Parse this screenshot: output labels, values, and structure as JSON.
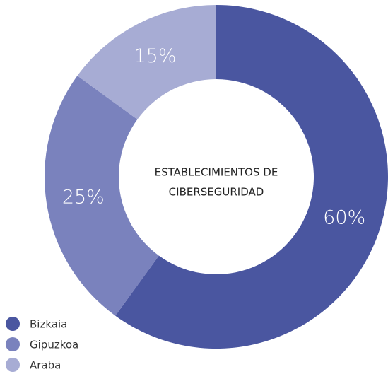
{
  "chart_data": {
    "type": "donut",
    "title_lines": [
      "ESTABLECIMIENTOS DE",
      "CIBERSEGURIDAD"
    ],
    "categories": [
      "Bizkaia",
      "Gipuzkoa",
      "Araba"
    ],
    "values": [
      60,
      25,
      15
    ],
    "value_labels": [
      "60%",
      "25%",
      "15%"
    ],
    "colors": [
      "#4a56a0",
      "#7a82bd",
      "#a7acd4"
    ],
    "legend": "bottom-left"
  }
}
